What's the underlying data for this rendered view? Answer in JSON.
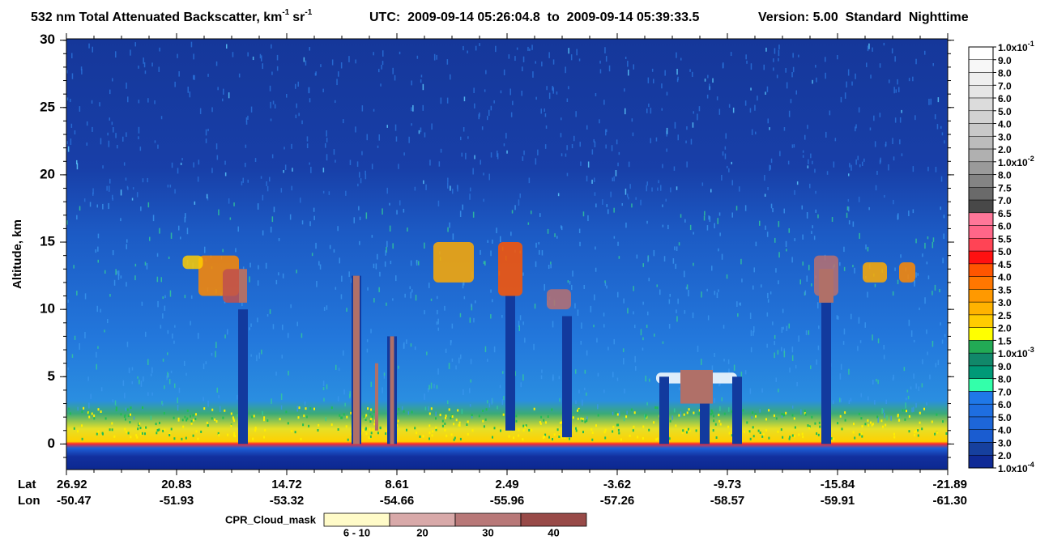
{
  "chart_data": {
    "type": "curtain",
    "title": {
      "text": "532 nm Total Attenuated Backscatter, km",
      "sup1": "-1",
      "unit": "sr",
      "sup2": "-1",
      "utc": "UTC:  2009-09-14 05:26:04.8  to  2009-09-14 05:39:33.5",
      "version": "Version: 5.00  Standard  Nighttime"
    },
    "ylabel": "Altitude, km",
    "ylim": [
      -1.9,
      30.1
    ],
    "yticks": [
      0,
      5,
      10,
      15,
      20,
      25,
      30
    ],
    "x_rows": {
      "lat_label": "Lat",
      "lon_label": "Lon",
      "lat": [
        "26.92",
        "20.83",
        "14.72",
        "8.61",
        "2.49",
        "-3.62",
        "-9.73",
        "-15.84",
        "-21.89"
      ],
      "lon": [
        "-50.47",
        "-51.93",
        "-53.32",
        "-54.66",
        "-55.96",
        "-57.26",
        "-58.57",
        "-59.91",
        "-61.30"
      ]
    },
    "colorbar": {
      "levels": [
        {
          "label": "1.0x10",
          "exp": "-1"
        },
        {
          "label": "9.0"
        },
        {
          "label": "8.0"
        },
        {
          "label": "7.0"
        },
        {
          "label": "6.0"
        },
        {
          "label": "5.0"
        },
        {
          "label": "4.0"
        },
        {
          "label": "3.0"
        },
        {
          "label": "2.0"
        },
        {
          "label": "1.0x10",
          "exp": "-2"
        },
        {
          "label": "8.0"
        },
        {
          "label": "7.5"
        },
        {
          "label": "7.0"
        },
        {
          "label": "6.5"
        },
        {
          "label": "6.0"
        },
        {
          "label": "5.5"
        },
        {
          "label": "5.0"
        },
        {
          "label": "4.5"
        },
        {
          "label": "4.0"
        },
        {
          "label": "3.5"
        },
        {
          "label": "3.0"
        },
        {
          "label": "2.5"
        },
        {
          "label": "2.0"
        },
        {
          "label": "1.5"
        },
        {
          "label": "1.0x10",
          "exp": "-3"
        },
        {
          "label": "9.0"
        },
        {
          "label": "8.0"
        },
        {
          "label": "7.0"
        },
        {
          "label": "6.0"
        },
        {
          "label": "5.0"
        },
        {
          "label": "4.0"
        },
        {
          "label": "3.0"
        },
        {
          "label": "2.0"
        },
        {
          "label": "1.0x10",
          "exp": "-4"
        }
      ],
      "colors": [
        "#ffffff",
        "#f7f7f7",
        "#efefef",
        "#e6e6e6",
        "#dcdcdc",
        "#d2d2d2",
        "#c8c8c8",
        "#bcbcbc",
        "#b0b0b0",
        "#9a9a9a",
        "#848484",
        "#6a6a6a",
        "#484848",
        "#ff7799",
        "#ff6688",
        "#ff4455",
        "#ff1111",
        "#ff5500",
        "#ff7700",
        "#ff9900",
        "#ffb300",
        "#ffcc00",
        "#ffff00",
        "#22aa55",
        "#11886a",
        "#009977",
        "#33ffaa",
        "#1f78e8",
        "#1e6ee0",
        "#1d66d8",
        "#1a5cd0",
        "#16409e",
        "#0f2a96"
      ]
    },
    "cloud_mask": {
      "label": "CPR_Cloud_mask",
      "entries": [
        {
          "label": "6 - 10",
          "color": "#fffbc8"
        },
        {
          "label": "20",
          "color": "#d8a9a9"
        },
        {
          "label": "30",
          "color": "#b87878"
        },
        {
          "label": "40",
          "color": "#984a48"
        }
      ]
    }
  }
}
